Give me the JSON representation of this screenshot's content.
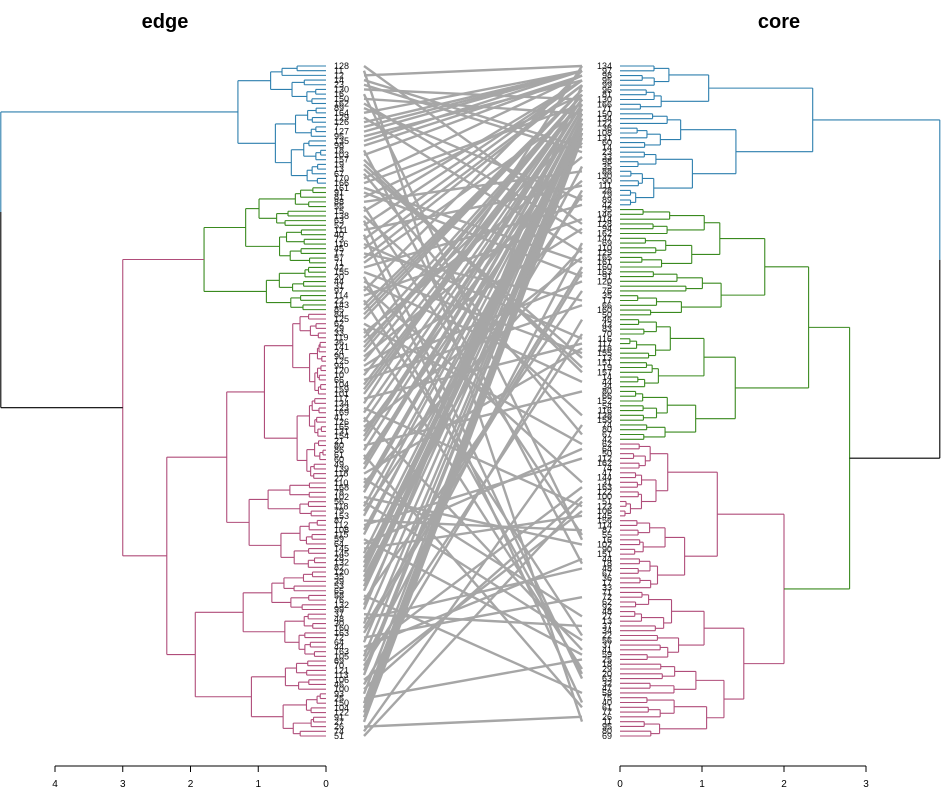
{
  "diagram": {
    "type": "tanglegram",
    "left_title": "edge",
    "right_title": "core",
    "left_axis": {
      "ticks": [
        4,
        3,
        2,
        1,
        0
      ],
      "max": 4
    },
    "right_axis": {
      "ticks": [
        0,
        1,
        2,
        3
      ],
      "max": 3
    },
    "left_leaves": [
      "128",
      "11",
      "12",
      "14",
      "23",
      "130",
      "16",
      "150",
      "162",
      "89",
      "164",
      "129",
      "126",
      "7",
      "127",
      "95",
      "135",
      "98",
      "18",
      "103",
      "157",
      "19",
      "13",
      "67",
      "170",
      "166",
      "161",
      "91",
      "81",
      "88",
      "55",
      "15",
      "138",
      "63",
      "52",
      "111",
      "40",
      "73",
      "116",
      "45",
      "17",
      "57",
      "71",
      "42",
      "155",
      "20",
      "44",
      "31",
      "97",
      "114",
      "22",
      "143",
      "85",
      "84",
      "125",
      "62",
      "29",
      "33",
      "119",
      "36",
      "141",
      "24",
      "90",
      "125",
      "94",
      "120",
      "10",
      "66",
      "104",
      "159",
      "101",
      "117",
      "134",
      "123",
      "169",
      "41",
      "126",
      "165",
      "131",
      "154",
      "21",
      "80",
      "86",
      "61",
      "60",
      "49",
      "139",
      "118",
      "27",
      "110",
      "168",
      "78",
      "102",
      "56",
      "118",
      "79",
      "153",
      "87",
      "112",
      "108",
      "115",
      "59",
      "64",
      "145",
      "145",
      "28",
      "132",
      "82",
      "120",
      "35",
      "39",
      "53",
      "65",
      "58",
      "76",
      "132",
      "99",
      "37",
      "48",
      "30",
      "160",
      "163",
      "72",
      "64",
      "44",
      "163",
      "105",
      "69",
      "70",
      "121",
      "113",
      "106",
      "46",
      "100",
      "93",
      "25",
      "150",
      "104",
      "122",
      "91",
      "27",
      "26",
      "74",
      "51"
    ],
    "right_leaves": [
      "134",
      "97",
      "98",
      "95",
      "99",
      "96",
      "81",
      "130",
      "166",
      "71",
      "150",
      "134",
      "122",
      "36",
      "108",
      "131",
      "60",
      "14",
      "23",
      "33",
      "98",
      "35",
      "88",
      "130",
      "90",
      "111",
      "28",
      "79",
      "89",
      "42",
      "35",
      "146",
      "114",
      "128",
      "94",
      "162",
      "147",
      "69",
      "110",
      "129",
      "165",
      "161",
      "160",
      "163",
      "91",
      "120",
      "5",
      "76",
      "35",
      "17",
      "66",
      "160",
      "50",
      "46",
      "43",
      "83",
      "70",
      "116",
      "117",
      "118",
      "155",
      "13",
      "151",
      "19",
      "157",
      "14",
      "44",
      "34",
      "80",
      "66",
      "152",
      "54",
      "116",
      "138",
      "158",
      "74",
      "80",
      "67",
      "42",
      "62",
      "64",
      "50",
      "112",
      "162",
      "74",
      "47",
      "144",
      "31",
      "163",
      "122",
      "100",
      "51",
      "123",
      "106",
      "145",
      "156",
      "114",
      "87",
      "55",
      "16",
      "102",
      "90",
      "151",
      "44",
      "18",
      "48",
      "67",
      "36",
      "17",
      "33",
      "71",
      "72",
      "62",
      "92",
      "48",
      "27",
      "13",
      "37",
      "34",
      "22",
      "56",
      "37",
      "41",
      "59",
      "25",
      "18",
      "29",
      "20",
      "63",
      "32",
      "47",
      "58",
      "75",
      "40",
      "61",
      "77",
      "26",
      "11",
      "95",
      "80",
      "69"
    ],
    "colors": {
      "cluster1": "#2d7fae",
      "cluster2": "#3a8a1f",
      "cluster3": "#b04d7a",
      "root": "#000000",
      "connector": "#a6a6a6"
    }
  }
}
